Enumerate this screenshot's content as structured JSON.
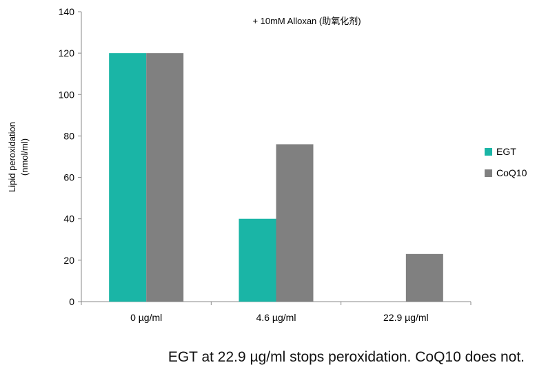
{
  "chart_data": {
    "type": "bar",
    "categories": [
      "0 µg/ml",
      "4.6 µg/ml",
      "22.9 µg/ml"
    ],
    "series": [
      {
        "name": "EGT",
        "values": [
          120,
          40,
          0
        ],
        "color": "#1ab5a6"
      },
      {
        "name": "CoQ10",
        "values": [
          120,
          76,
          23
        ],
        "color": "#808080"
      }
    ],
    "title": "",
    "annotation": "+ 10mM Alloxan (助氧化剂)",
    "ylabel_line1": "Lipid peroxidation",
    "ylabel_line2": "(nmol/ml)",
    "xlabel": "",
    "ylim": [
      0,
      140
    ],
    "yticks": [
      0,
      20,
      40,
      60,
      80,
      100,
      120,
      140
    ],
    "grid": false,
    "legend": "right"
  },
  "caption": "EGT at 22.9 µg/ml stops peroxidation.  CoQ10 does not."
}
